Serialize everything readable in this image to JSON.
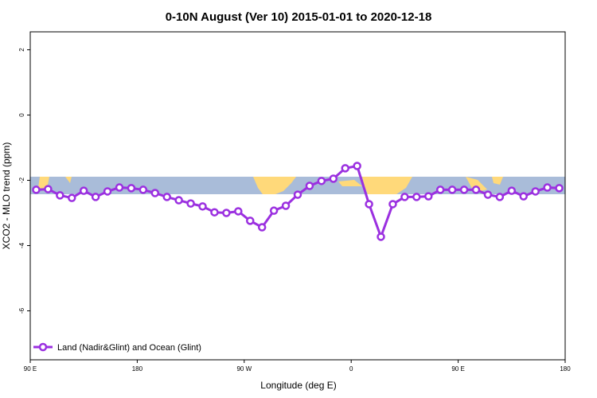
{
  "chart_data": {
    "type": "line",
    "title": "0-10N August (Ver 10)   2015-01-01 to 2020-12-18",
    "xlabel": "Longitude (deg E)",
    "ylabel": "XCO2 - MLO trend (ppm)",
    "x": [
      95,
      105,
      115,
      125,
      135,
      145,
      155,
      165,
      175,
      185,
      195,
      205,
      215,
      225,
      235,
      245,
      255,
      265,
      275,
      285,
      295,
      305,
      315,
      325,
      335,
      345,
      355,
      365,
      375,
      385,
      395,
      405,
      415,
      425,
      435,
      445,
      455,
      465,
      475,
      485,
      495,
      505,
      515,
      525,
      535
    ],
    "series": [
      {
        "name": "Land (Nadir&Glint) and Ocean (Glint)",
        "color": "#9b30e0",
        "values": [
          -2.29,
          -2.27,
          -2.46,
          -2.54,
          -2.32,
          -2.51,
          -2.34,
          -2.22,
          -2.24,
          -2.29,
          -2.39,
          -2.51,
          -2.61,
          -2.71,
          -2.8,
          -2.98,
          -3.0,
          -2.95,
          -3.24,
          -3.44,
          -2.93,
          -2.78,
          -2.44,
          -2.17,
          -2.02,
          -1.95,
          -1.63,
          -1.56,
          -2.73,
          -3.73,
          -2.73,
          -2.51,
          -2.51,
          -2.49,
          -2.29,
          -2.29,
          -2.29,
          -2.29,
          -2.44,
          -2.51,
          -2.32,
          -2.49,
          -2.34,
          -2.22,
          -2.24
        ]
      }
    ],
    "xlim": [
      90,
      540
    ],
    "xticks": [
      {
        "value": 90,
        "label": "90 E"
      },
      180,
      {
        "value": 270,
        "label": "90 W"
      },
      {
        "value": 360,
        "label": "0"
      },
      {
        "value": 450,
        "label": "90 E"
      },
      {
        "value": 540,
        "label": "180"
      }
    ],
    "ylim": [
      -7.5,
      2.55
    ],
    "yticks": [
      2,
      0,
      -2,
      -4,
      -6
    ],
    "legend": "lower left"
  }
}
